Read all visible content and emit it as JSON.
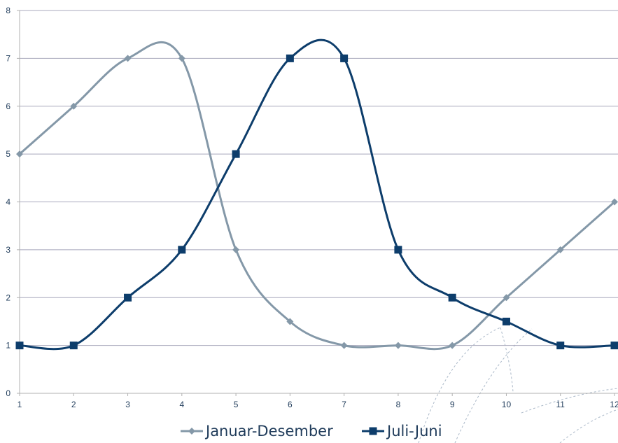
{
  "chart_data": {
    "type": "line",
    "x": [
      1,
      2,
      3,
      4,
      5,
      6,
      7,
      8,
      9,
      10,
      11,
      12
    ],
    "x_tick_labels": [
      "1",
      "2",
      "3",
      "4",
      "5",
      "6",
      "7",
      "8",
      "9",
      "10",
      "11",
      "12"
    ],
    "y_tick_labels": [
      "0",
      "1",
      "2",
      "3",
      "4",
      "5",
      "6",
      "7",
      "8"
    ],
    "ylim": [
      0,
      8
    ],
    "xlim": [
      1,
      12
    ],
    "grid": "horizontal",
    "legend_position": "bottom",
    "smooth": true,
    "series": [
      {
        "name": "Januar-Desember",
        "marker": "diamond",
        "color": "#8498a8",
        "values": [
          5,
          6,
          7,
          7,
          3,
          1.5,
          1,
          1,
          1,
          2,
          3,
          4
        ]
      },
      {
        "name": "Juli-Juni",
        "marker": "square",
        "color": "#0d3d6b",
        "values": [
          1,
          1,
          2,
          3,
          5,
          7,
          7,
          3,
          2,
          1.5,
          1,
          1
        ]
      }
    ],
    "title": "",
    "xlabel": "",
    "ylabel": ""
  }
}
